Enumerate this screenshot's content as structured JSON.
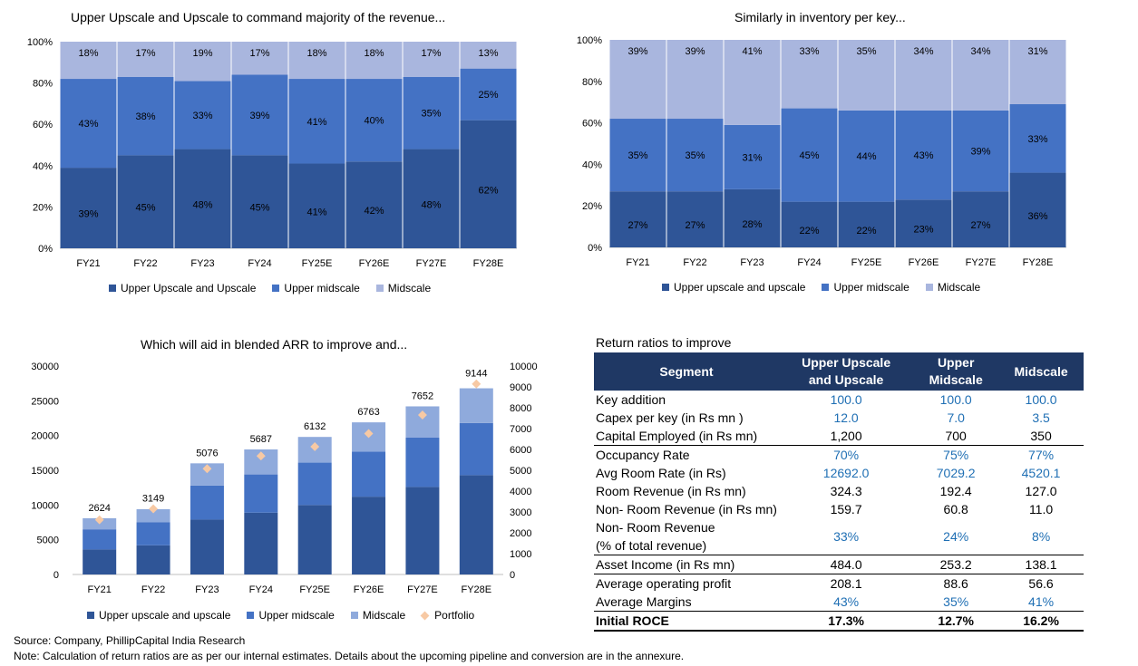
{
  "colors": {
    "dark": "#2F5597",
    "mid": "#4472C4",
    "light": "#A9B6DE",
    "light_bar": "#8FAADC",
    "portfolio": "#F7C9A4",
    "header": "#1F3864",
    "blue_text": "#1F6FB4"
  },
  "chart_data": [
    {
      "type": "bar",
      "stacked": true,
      "title": "Upper Upscale and Upscale to command majority of the revenue...",
      "categories": [
        "FY21",
        "FY22",
        "FY23",
        "FY24",
        "FY25E",
        "FY26E",
        "FY27E",
        "FY28E"
      ],
      "yticks": [
        "0%",
        "20%",
        "40%",
        "60%",
        "80%",
        "100%"
      ],
      "ylim": [
        0,
        100
      ],
      "series": [
        {
          "name": "Upper Upscale and Upscale",
          "values": [
            39,
            45,
            48,
            45,
            41,
            42,
            48,
            62
          ],
          "labels": [
            "39%",
            "45%",
            "48%",
            "45%",
            "41%",
            "42%",
            "48%",
            "62%"
          ]
        },
        {
          "name": "Upper midscale",
          "values": [
            43,
            38,
            33,
            39,
            41,
            40,
            35,
            25
          ],
          "labels": [
            "43%",
            "38%",
            "33%",
            "39%",
            "41%",
            "40%",
            "35%",
            "25%"
          ]
        },
        {
          "name": "Midscale",
          "values": [
            18,
            17,
            19,
            17,
            18,
            18,
            17,
            13
          ],
          "labels": [
            "18%",
            "17%",
            "19%",
            "17%",
            "18%",
            "18%",
            "17%",
            "13%"
          ]
        }
      ],
      "legend": "bottom"
    },
    {
      "type": "bar",
      "stacked": true,
      "title": "Similarly in inventory per key...",
      "categories": [
        "FY21",
        "FY22",
        "FY23",
        "FY24",
        "FY25E",
        "FY26E",
        "FY27E",
        "FY28E"
      ],
      "yticks": [
        "0%",
        "20%",
        "40%",
        "60%",
        "80%",
        "100%"
      ],
      "ylim": [
        0,
        100
      ],
      "series": [
        {
          "name": "Upper upscale and upscale",
          "values": [
            27,
            27,
            28,
            22,
            22,
            23,
            27,
            36
          ],
          "labels": [
            "27%",
            "27%",
            "28%",
            "22%",
            "22%",
            "23%",
            "27%",
            "36%"
          ]
        },
        {
          "name": "Upper midscale",
          "values": [
            35,
            35,
            31,
            45,
            44,
            43,
            39,
            33
          ],
          "labels": [
            "35%",
            "35%",
            "31%",
            "45%",
            "44%",
            "43%",
            "39%",
            "33%"
          ]
        },
        {
          "name": "Midscale",
          "values": [
            39,
            39,
            41,
            33,
            35,
            34,
            34,
            31
          ],
          "labels": [
            "39%",
            "39%",
            "41%",
            "33%",
            "35%",
            "34%",
            "34%",
            "31%"
          ]
        }
      ],
      "legend": "bottom"
    },
    {
      "type": "bar",
      "stacked": true,
      "title": "Which will aid in blended ARR to improve and...",
      "categories": [
        "FY21",
        "FY22",
        "FY23",
        "FY24",
        "FY25E",
        "FY26E",
        "FY27E",
        "FY28E"
      ],
      "yticks_left": [
        "0",
        "5000",
        "10000",
        "15000",
        "20000",
        "25000",
        "30000"
      ],
      "yticks_right": [
        "0",
        "1000",
        "2000",
        "3000",
        "4000",
        "5000",
        "6000",
        "7000",
        "8000",
        "9000",
        "10000"
      ],
      "ylim": [
        0,
        30000
      ],
      "y2lim": [
        0,
        10000
      ],
      "series": [
        {
          "name": "Upper upscale and upscale",
          "values": [
            3600,
            4200,
            7900,
            8900,
            10000,
            11200,
            12600,
            14300
          ]
        },
        {
          "name": "Upper midscale",
          "values": [
            2900,
            3300,
            4900,
            5500,
            6100,
            6500,
            7100,
            7500
          ]
        },
        {
          "name": "Midscale",
          "values": [
            1600,
            1900,
            3200,
            3600,
            3700,
            4200,
            4500,
            5000
          ]
        },
        {
          "name": "Portfolio",
          "axis": "right",
          "values": [
            2624,
            3149,
            5076,
            5687,
            6132,
            6763,
            7652,
            9144
          ],
          "labels": [
            "2624",
            "3149",
            "5076",
            "5687",
            "6132",
            "6763",
            "7652",
            "9144"
          ]
        }
      ],
      "legend": "bottom"
    }
  ],
  "returns": {
    "title": "Return ratios to improve",
    "headers": {
      "segment": "Segment",
      "c1a": "Upper Upscale",
      "c1b": "and Upscale",
      "c2a": "Upper",
      "c2b": "Midscale",
      "c3": "Midscale"
    },
    "rows": [
      {
        "label": "Key addition",
        "v1": "100.0",
        "v2": "100.0",
        "v3": "100.0"
      },
      {
        "label": "Capex per key (in Rs mn )",
        "v1": "12.0",
        "v2": "7.0",
        "v3": "3.5"
      },
      {
        "label": "Capital Employed (in Rs mn)",
        "v1": "1,200",
        "v2": "700",
        "v3": "350"
      },
      {
        "label": "Occupancy Rate",
        "v1": "70%",
        "v2": "75%",
        "v3": "77%"
      },
      {
        "label": "Avg Room Rate (in Rs)",
        "v1": "12692.0",
        "v2": "7029.2",
        "v3": "4520.1"
      },
      {
        "label": "Room Revenue (in Rs mn)",
        "v1": "324.3",
        "v2": "192.4",
        "v3": "127.0"
      },
      {
        "label": "Non- Room Revenue (in Rs mn)",
        "v1": "159.7",
        "v2": "60.8",
        "v3": "11.0"
      },
      {
        "label": "Non- Room Revenue",
        "label2": "(% of total revenue)",
        "v1": "33%",
        "v2": "24%",
        "v3": "8%"
      },
      {
        "label": "Asset Income (in Rs mn)",
        "v1": "484.0",
        "v2": "253.2",
        "v3": "138.1"
      },
      {
        "label": "Average operating profit",
        "v1": "208.1",
        "v2": "88.6",
        "v3": "56.6"
      },
      {
        "label": "Average Margins",
        "v1": "43%",
        "v2": "35%",
        "v3": "41%"
      },
      {
        "label": "Initial ROCE",
        "v1": "17.3%",
        "v2": "12.7%",
        "v3": "16.2%"
      }
    ]
  },
  "footer": {
    "source": "Source: Company, PhillipCapital India Research",
    "note": "Note: Calculation of return ratios are as per our internal estimates. Details about the upcoming pipeline and conversion are in the annexure."
  }
}
